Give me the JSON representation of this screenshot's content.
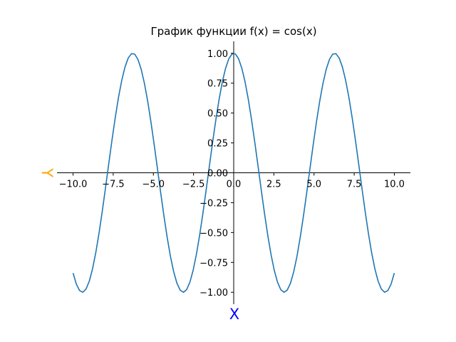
{
  "chart_data": {
    "type": "line",
    "title": "График функции f(x) = cos(x)",
    "xlabel": "X",
    "ylabel": "Y",
    "xlim": [
      -11.0,
      11.0
    ],
    "ylim": [
      -1.1,
      1.1
    ],
    "xticks": [
      -10.0,
      -7.5,
      -5.0,
      -2.5,
      0.0,
      2.5,
      5.0,
      7.5,
      10.0
    ],
    "xtick_labels": [
      "−10.0",
      "−7.5",
      "−5.0",
      "−2.5",
      "0.0",
      "2.5",
      "5.0",
      "7.5",
      "10.0"
    ],
    "yticks": [
      -1.0,
      -0.75,
      -0.5,
      -0.25,
      0.0,
      0.25,
      0.5,
      0.75,
      1.0
    ],
    "ytick_labels": [
      "−1.00",
      "−0.75",
      "−0.50",
      "−0.25",
      "0.00",
      "0.25",
      "0.50",
      "0.75",
      "1.00"
    ],
    "grid": false,
    "series": [
      {
        "function": "cos(x)",
        "x_range": [
          -10.0,
          10.0
        ],
        "sample_count": 100,
        "color": "#1f77b4"
      }
    ],
    "xlabel_color": "#0000ff",
    "ylabel_color": "#ffa500",
    "axis_color": "#000000"
  }
}
